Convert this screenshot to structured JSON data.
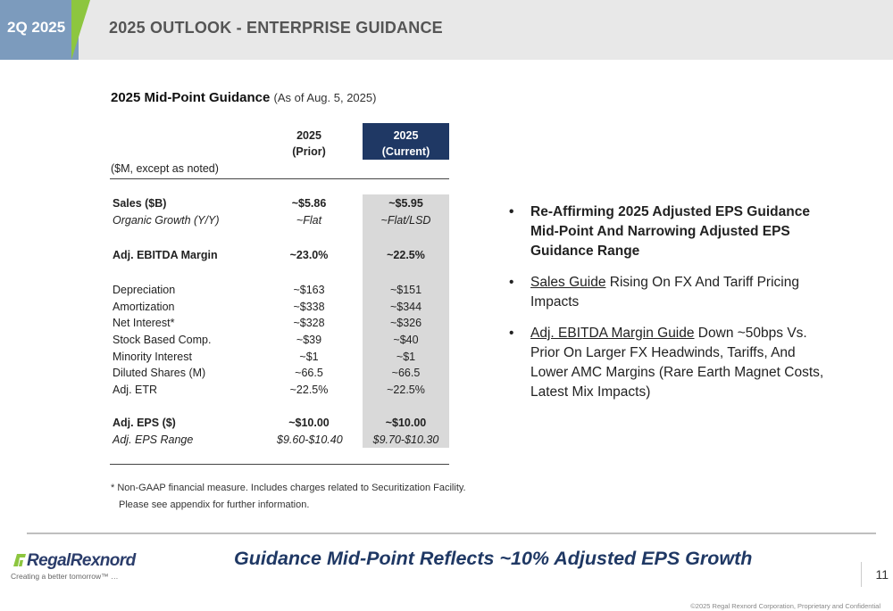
{
  "header": {
    "tab_label": "2Q 2025",
    "title": "2025 OUTLOOK - ENTERPRISE GUIDANCE"
  },
  "table": {
    "title": "2025 Mid-Point Guidance",
    "subtitle": "(As of Aug. 5, 2025)",
    "units_note": "($M, except as noted)",
    "col_prior": [
      "2025",
      "(Prior)"
    ],
    "col_current": [
      "2025",
      "(Current)"
    ],
    "rows": [
      {
        "label": "Sales ($B)",
        "prior": "~$5.86",
        "current": "~$5.95"
      },
      {
        "label": "Organic Growth (Y/Y)",
        "prior": "~Flat",
        "current": "~Flat/LSD"
      },
      {
        "label": "Adj. EBITDA Margin",
        "prior": "~23.0%",
        "current": "~22.5%"
      },
      {
        "label": "Depreciation",
        "prior": "~$163",
        "current": "~$151"
      },
      {
        "label": "Amortization",
        "prior": "~$338",
        "current": "~$344"
      },
      {
        "label": "Net Interest*",
        "prior": "~$328",
        "current": "~$326"
      },
      {
        "label": "Stock Based Comp.",
        "prior": "~$39",
        "current": "~$40"
      },
      {
        "label": "Minority Interest",
        "prior": "~$1",
        "current": "~$1"
      },
      {
        "label": "Diluted Shares (M)",
        "prior": "~66.5",
        "current": "~66.5"
      },
      {
        "label": "Adj. ETR",
        "prior": "~22.5%",
        "current": "~22.5%"
      },
      {
        "label": "Adj. EPS ($)",
        "prior": "~$10.00",
        "current": "~$10.00"
      },
      {
        "label": "Adj. EPS Range",
        "prior": "$9.60-$10.40",
        "current": "$9.70-$10.30"
      }
    ],
    "footnote": [
      "* Non-GAAP financial measure. Includes charges related to Securitization Facility.",
      "Please see appendix for further information."
    ]
  },
  "bullets": [
    {
      "text": "Re-Affirming 2025 Adjusted EPS Guidance Mid-Point And Narrowing Adjusted EPS Guidance Range"
    },
    {
      "underlined": "Sales Guide",
      "text": " Rising On FX And Tariff Pricing Impacts"
    },
    {
      "underlined": "Adj. EBITDA Margin Guide",
      "text": " Down ~50bps Vs. Prior On Larger FX Headwinds, Tariffs, And Lower AMC Margins (Rare Earth Magnet Costs, Latest Mix Impacts)"
    }
  ],
  "bullet_glyph": "•",
  "tagline": "Guidance Mid-Point Reflects ~10% Adjusted EPS Growth",
  "logo": {
    "name": "RegalRexnord",
    "tagline": "Creating a better tomorrow™ …"
  },
  "page_number": "11",
  "copyright": "©2025 Regal Rexnord Corporation, Proprietary and Confidential",
  "colors": {
    "header_tab": "#7c9bbd",
    "header_accent": "#8dc63f",
    "current_header": "#1f3864",
    "current_column": "#d9d9d9",
    "tagline": "#1f3864"
  }
}
